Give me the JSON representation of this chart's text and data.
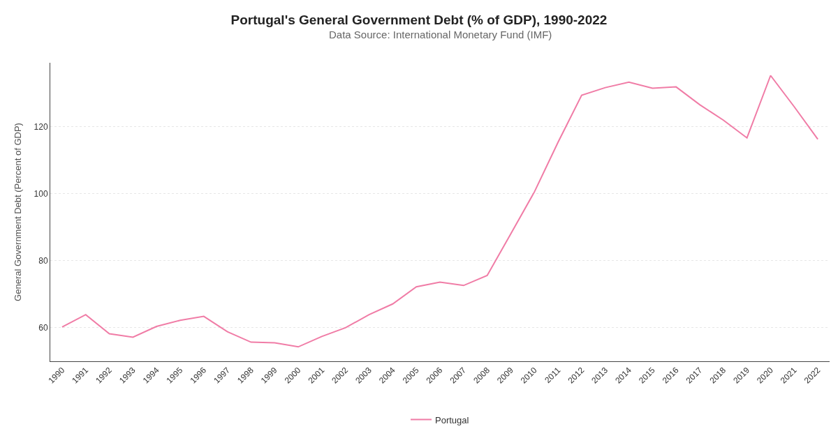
{
  "chart_data": {
    "type": "line",
    "title": "Portugal's General Government Debt (% of GDP), 1990-2022",
    "subtitle": "Data Source: International Monetary Fund (IMF)",
    "ylabel": "General Government Debt (Percent of GDP)",
    "categories": [
      "1990",
      "1991",
      "1992",
      "1993",
      "1994",
      "1995",
      "1996",
      "1997",
      "1998",
      "1999",
      "2000",
      "2001",
      "2002",
      "2003",
      "2004",
      "2005",
      "2006",
      "2007",
      "2008",
      "2009",
      "2010",
      "2011",
      "2012",
      "2013",
      "2014",
      "2015",
      "2016",
      "2017",
      "2018",
      "2019",
      "2020",
      "2021",
      "2022"
    ],
    "series": [
      {
        "name": "Portugal",
        "color": "#f07ca6",
        "values": [
          60.2,
          63.9,
          58.2,
          57.2,
          60.4,
          62.2,
          63.4,
          58.8,
          55.7,
          55.5,
          54.3,
          57.4,
          60.0,
          63.9,
          67.1,
          72.2,
          73.6,
          72.6,
          75.6,
          88.0,
          100.5,
          115.3,
          129.3,
          131.6,
          133.2,
          131.4,
          131.8,
          126.5,
          121.9,
          116.6,
          135.2,
          125.9,
          116.2
        ]
      }
    ],
    "ylim": [
      50,
      139
    ],
    "yticks": [
      60,
      80,
      100,
      120
    ],
    "grid": "y",
    "legend": "bottom",
    "marker": "none",
    "line_style": "solid"
  }
}
